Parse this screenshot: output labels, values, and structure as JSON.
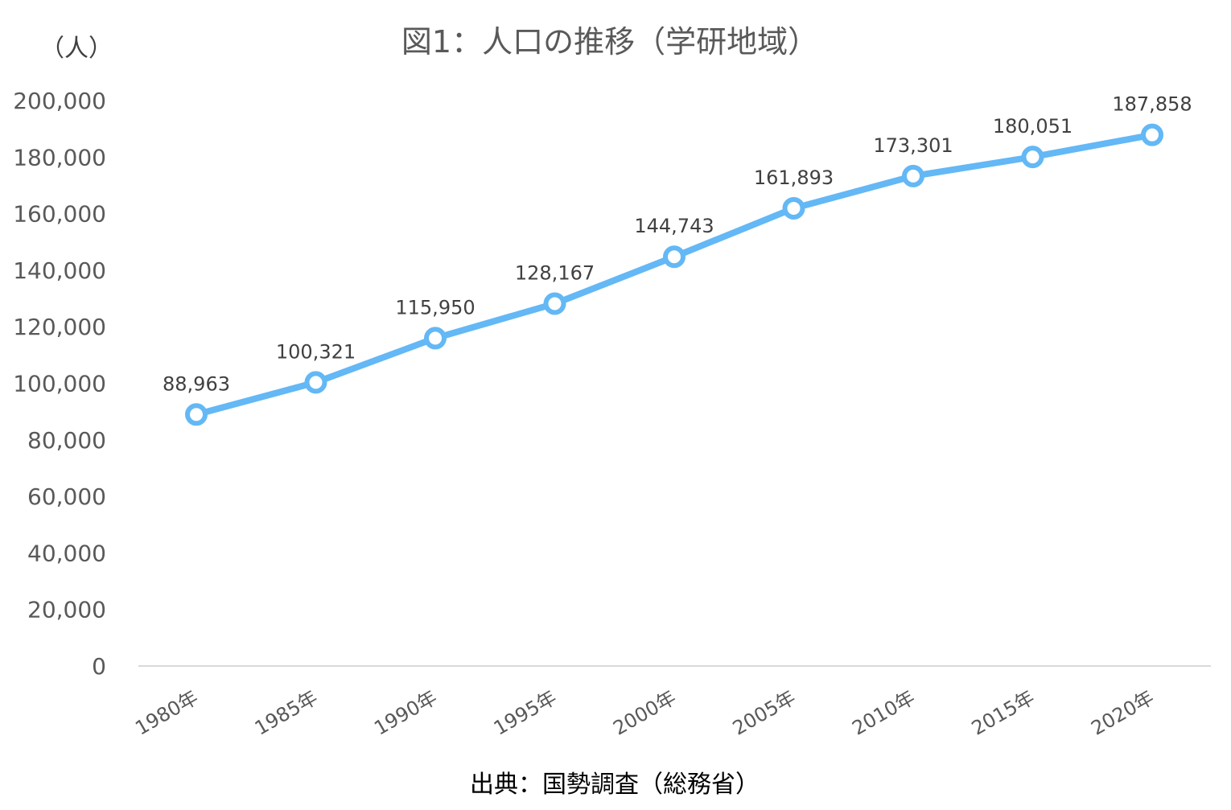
{
  "chart_data": {
    "type": "line",
    "title": "図1：人口の推移（学研地域）",
    "unit_label": "（人）",
    "source": "出典：国勢調査（総務省）",
    "categories": [
      "1980年",
      "1985年",
      "1990年",
      "1995年",
      "2000年",
      "2005年",
      "2010年",
      "2015年",
      "2020年"
    ],
    "series": [
      {
        "values": [
          88963,
          100321,
          115950,
          128167,
          144743,
          161893,
          173301,
          180051,
          187858
        ],
        "labels": [
          "88,963",
          "100,321",
          "115,950",
          "128,167",
          "144,743",
          "161,893",
          "173,301",
          "180,051",
          "187,858"
        ],
        "color": "#63B8F5"
      }
    ],
    "ylim": [
      0,
      200000
    ],
    "yticks": [
      "0",
      "20,000",
      "40,000",
      "60,000",
      "80,000",
      "100,000",
      "120,000",
      "140,000",
      "160,000",
      "180,000",
      "200,000"
    ],
    "ytick_values": [
      0,
      20000,
      40000,
      60000,
      80000,
      100000,
      120000,
      140000,
      160000,
      180000,
      200000
    ],
    "grid": false,
    "legend": "none"
  }
}
